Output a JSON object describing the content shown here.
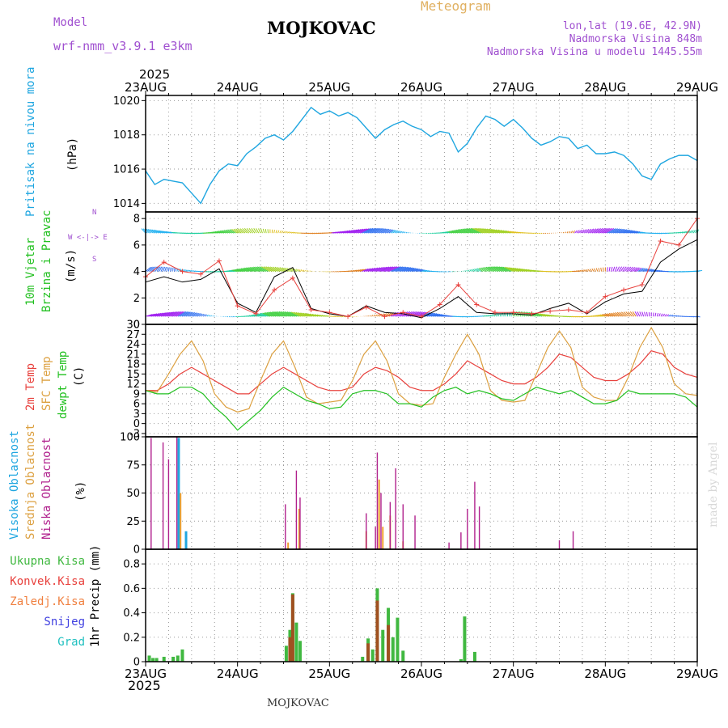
{
  "header": {
    "model_label": "Model",
    "model_name": "wrf-nmm_v3.9.1 e3km",
    "station_title": "MOJKOVAC",
    "product": "Meteogram",
    "lonlat": "lon,lat (19.6E, 42.9N)",
    "elevation": "Nadmorska Visina 848m",
    "model_elevation": "Nadmorska Visina u modelu 1445.55m",
    "year": "2025",
    "footer_station": "MOJKOVAC",
    "watermark": "made by Angel"
  },
  "time_axis": {
    "labels": [
      "23AUG",
      "24AUG",
      "25AUG",
      "26AUG",
      "27AUG",
      "28AUG",
      "29AUG"
    ],
    "year_label": "2025"
  },
  "panels": {
    "pressure": {
      "ylabel": "Pritisak na nivou mora",
      "unit": "(hPa)"
    },
    "wind": {
      "ylabel_1": "10m Vjetar",
      "ylabel_2": "Brzina i Pravac",
      "unit": "(m/s)",
      "compass_top": "N",
      "compass_mid": "W <-|-> E",
      "compass_bottom": "S"
    },
    "temp": {
      "ylabel_1": "2m Temp",
      "ylabel_2": "SFC Temp",
      "ylabel_3": "dewpt Temp",
      "unit": "(C)"
    },
    "cloud": {
      "ylabel_1": "Visoka Oblacnost",
      "ylabel_2": "Srednja Oblacnost",
      "ylabel_3": "Niska Oblacnost",
      "unit": "(%)"
    },
    "precip": {
      "legend": [
        "Ukupna Kisa",
        "Konvek.Kisa",
        "Zaledj.Kisa",
        "Snijeg",
        "Grad"
      ],
      "unit": "1hr Precip (mm)"
    }
  },
  "colors": {
    "pressure": "#1fa6e0",
    "wind_speed": "#000000",
    "wind_gust": "#e8403c",
    "temp2m": "#e8403c",
    "sfc_temp": "#dca040",
    "dewpt": "#22c020",
    "cloud_high": "#1fa6e0",
    "cloud_mid": "#f0a030",
    "cloud_low": "#b0208c",
    "rain_total": "#40b840",
    "rain_conv": "#e8403c",
    "rain_frz": "#f08040",
    "snow": "#4040e0",
    "hail": "#20c0c0",
    "title_purple": "#a050d0",
    "meteogram_orange": "#e0b060"
  },
  "chart_data": [
    {
      "type": "line",
      "title": "Pritisak na nivou mora",
      "ylabel": "(hPa)",
      "ylim": [
        1013.5,
        1020.3
      ],
      "yticks": [
        1014,
        1016,
        1018,
        1020
      ],
      "x_days": [
        0,
        0.1,
        0.2,
        0.3,
        0.4,
        0.5,
        0.6,
        0.7,
        0.8,
        0.9,
        1.0,
        1.1,
        1.2,
        1.3,
        1.4,
        1.5,
        1.6,
        1.7,
        1.8,
        1.9,
        2.0,
        2.1,
        2.2,
        2.3,
        2.4,
        2.5,
        2.6,
        2.7,
        2.8,
        2.9,
        3.0,
        3.1,
        3.2,
        3.3,
        3.4,
        3.5,
        3.6,
        3.7,
        3.8,
        3.9,
        4.0,
        4.1,
        4.2,
        4.3,
        4.4,
        4.5,
        4.6,
        4.7,
        4.8,
        4.9,
        5.0,
        5.1,
        5.2,
        5.3,
        5.4,
        5.5,
        5.6,
        5.7,
        5.8,
        5.9,
        6.0
      ],
      "values": [
        1015.9,
        1015.1,
        1015.4,
        1015.3,
        1015.2,
        1014.6,
        1014.0,
        1015.1,
        1015.9,
        1016.3,
        1016.2,
        1016.9,
        1017.3,
        1017.8,
        1018.0,
        1017.7,
        1018.2,
        1018.9,
        1019.6,
        1019.2,
        1019.4,
        1019.1,
        1019.3,
        1019.0,
        1018.4,
        1017.8,
        1018.3,
        1018.6,
        1018.8,
        1018.5,
        1018.3,
        1017.9,
        1018.2,
        1018.1,
        1017.0,
        1017.5,
        1018.4,
        1019.1,
        1018.9,
        1018.5,
        1018.9,
        1018.4,
        1017.8,
        1017.4,
        1017.6,
        1017.9,
        1017.8,
        1017.2,
        1017.4,
        1016.9,
        1016.9,
        1017.0,
        1016.8,
        1016.3,
        1015.6,
        1015.4,
        1016.3,
        1016.6,
        1016.8,
        1016.8,
        1016.5
      ]
    },
    {
      "type": "line",
      "title": "10m Vjetar Brzina i Pravac",
      "ylabel": "(m/s)",
      "ylim": [
        0,
        8.5
      ],
      "yticks": [
        0,
        2,
        4,
        6,
        8
      ],
      "x_days": [
        0,
        0.2,
        0.4,
        0.6,
        0.8,
        1.0,
        1.2,
        1.4,
        1.6,
        1.8,
        2.0,
        2.2,
        2.4,
        2.6,
        2.8,
        3.0,
        3.2,
        3.4,
        3.6,
        3.8,
        4.0,
        4.2,
        4.4,
        4.6,
        4.8,
        5.0,
        5.2,
        5.4,
        5.6,
        5.8,
        6.0
      ],
      "series": [
        {
          "name": "wind speed",
          "values": [
            3.2,
            3.6,
            3.2,
            3.4,
            4.2,
            1.6,
            0.9,
            3.6,
            4.3,
            1.2,
            0.8,
            0.6,
            1.4,
            0.9,
            0.8,
            0.5,
            1.2,
            2.1,
            0.9,
            0.8,
            0.8,
            0.7,
            1.2,
            1.6,
            0.8,
            1.7,
            2.3,
            2.5,
            4.7,
            5.7,
            6.4
          ]
        },
        {
          "name": "wind gust",
          "values": [
            3.6,
            4.7,
            4.0,
            3.8,
            4.8,
            1.4,
            0.8,
            2.6,
            3.5,
            1.1,
            0.9,
            0.6,
            1.3,
            0.6,
            0.9,
            0.6,
            1.5,
            3.0,
            1.5,
            0.9,
            0.9,
            0.8,
            1.0,
            1.1,
            0.9,
            2.1,
            2.6,
            3.0,
            6.3,
            6.0,
            8.0
          ]
        }
      ]
    },
    {
      "type": "line",
      "title": "2m Temp / SFC Temp / dewpt Temp",
      "ylabel": "(C)",
      "ylim": [
        -4,
        30
      ],
      "yticks": [
        -3,
        0,
        3,
        6,
        9,
        12,
        15,
        18,
        21,
        24,
        27,
        30
      ],
      "x_days": [
        0,
        0.125,
        0.25,
        0.375,
        0.5,
        0.625,
        0.75,
        0.875,
        1.0,
        1.125,
        1.25,
        1.375,
        1.5,
        1.625,
        1.75,
        1.875,
        2.0,
        2.125,
        2.25,
        2.375,
        2.5,
        2.625,
        2.75,
        2.875,
        3.0,
        3.125,
        3.25,
        3.375,
        3.5,
        3.625,
        3.75,
        3.875,
        4.0,
        4.125,
        4.25,
        4.375,
        4.5,
        4.625,
        4.75,
        4.875,
        5.0,
        5.125,
        5.25,
        5.375,
        5.5,
        5.625,
        5.75,
        5.875,
        6.0
      ],
      "series": [
        {
          "name": "2m Temp",
          "values": [
            10,
            10,
            12,
            15,
            17,
            15,
            13,
            11,
            9,
            9,
            12,
            15,
            17,
            15,
            13,
            11,
            10,
            10,
            11,
            15,
            17,
            16,
            14,
            11,
            10,
            10,
            12,
            15,
            19,
            17,
            15,
            13,
            12,
            12,
            14,
            17,
            21,
            20,
            17,
            14,
            13,
            13,
            15,
            18,
            22,
            21,
            17,
            15,
            14
          ]
        },
        {
          "name": "SFC Temp",
          "values": [
            10,
            9.5,
            15,
            21,
            25,
            19,
            9,
            5,
            3.5,
            4.5,
            13,
            21,
            25,
            17,
            8,
            6,
            6.5,
            7,
            13,
            21,
            25,
            19,
            9,
            6,
            5.5,
            6,
            14,
            21,
            27,
            21,
            10,
            7,
            6.5,
            7,
            15,
            23,
            28,
            23,
            11,
            8,
            7,
            7,
            14,
            23,
            29,
            23,
            12,
            9,
            8.5
          ]
        },
        {
          "name": "dewpt Temp",
          "values": [
            10,
            9,
            9,
            11,
            11,
            9,
            5,
            2,
            -2,
            1,
            4,
            8,
            11,
            9,
            7,
            6,
            4.5,
            5,
            9,
            10,
            10,
            9,
            6,
            6,
            5,
            8,
            10,
            11,
            9,
            10,
            9,
            7.5,
            7,
            9,
            11,
            10,
            9,
            10,
            8,
            6,
            6,
            7,
            10,
            9,
            9,
            9,
            9,
            8,
            5
          ]
        }
      ]
    },
    {
      "type": "bar",
      "title": "Visoka / Srednja / Niska Oblacnost",
      "ylabel": "(%)",
      "ylim": [
        0,
        100
      ],
      "yticks": [
        0,
        25,
        50,
        75,
        100
      ],
      "series": [
        {
          "name": "Visoka Oblacnost",
          "x_days": [
            0.36,
            0.44
          ],
          "values": [
            99,
            16
          ]
        },
        {
          "name": "Srednja Oblacnost",
          "x_days": [
            0.38,
            1.55,
            1.67,
            2.4,
            2.54,
            2.58,
            2.66,
            2.8
          ],
          "values": [
            50,
            6,
            36,
            16,
            62,
            20,
            30,
            7
          ]
        },
        {
          "name": "Niska Oblacnost",
          "x_days": [
            0.06,
            0.19,
            0.25,
            0.34,
            1.52,
            1.64,
            1.68,
            2.4,
            2.5,
            2.52,
            2.56,
            2.66,
            2.72,
            2.8,
            2.93,
            3.3,
            3.43,
            3.5,
            3.58,
            3.63,
            4.5,
            4.65
          ],
          "values": [
            99,
            95,
            80,
            100,
            40,
            70,
            46,
            32,
            20,
            86,
            50,
            42,
            72,
            40,
            30,
            6,
            15,
            36,
            60,
            38,
            8,
            16
          ]
        }
      ]
    },
    {
      "type": "bar",
      "title": "1hr Precip",
      "ylabel": "1hr Precip (mm)",
      "ylim": [
        0,
        0.92
      ],
      "yticks": [
        0,
        0.2,
        0.4,
        0.6,
        0.8
      ],
      "series": [
        {
          "name": "Ukupna Kisa",
          "x_days": [
            0.04,
            0.08,
            0.12,
            0.2,
            0.3,
            0.35,
            0.4,
            1.53,
            1.57,
            1.6,
            1.64,
            1.68,
            2.36,
            2.42,
            2.47,
            2.52,
            2.58,
            2.64,
            2.69,
            2.74,
            2.8,
            3.43,
            3.47,
            3.58
          ],
          "values": [
            0.05,
            0.03,
            0.03,
            0.04,
            0.04,
            0.05,
            0.1,
            0.13,
            0.26,
            0.56,
            0.32,
            0.17,
            0.04,
            0.19,
            0.1,
            0.6,
            0.26,
            0.44,
            0.2,
            0.36,
            0.09,
            0.02,
            0.37,
            0.08
          ]
        },
        {
          "name": "Konvek.Kisa",
          "x_days": [
            1.57,
            1.6,
            2.42,
            2.52,
            2.64
          ],
          "values": [
            0.2,
            0.55,
            0.15,
            0.5,
            0.3
          ]
        }
      ]
    }
  ]
}
